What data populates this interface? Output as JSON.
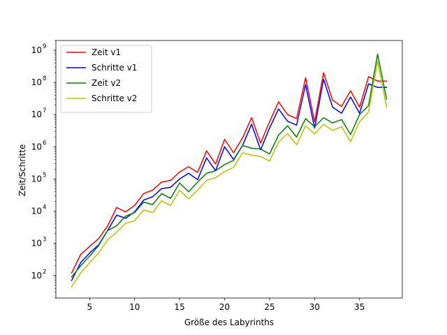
{
  "chart_data": {
    "type": "line",
    "xlabel": "Größe des Labyrinths",
    "ylabel": "Zeit/Schritte",
    "xlim": [
      1.25,
      39.75
    ],
    "ylim": [
      20,
      2000000000
    ],
    "yscale": "log",
    "grid": false,
    "legend_position": "top-left",
    "x_ticks": [
      5,
      10,
      15,
      20,
      25,
      30,
      35
    ],
    "x_tick_labels": [
      "5",
      "10",
      "15",
      "20",
      "25",
      "30",
      "35"
    ],
    "y_ticks": [
      100,
      1000,
      10000,
      100000,
      1000000,
      10000000,
      100000000,
      1000000000
    ],
    "y_tick_exponents": [
      "2",
      "3",
      "4",
      "5",
      "6",
      "7",
      "8",
      "9"
    ],
    "y_tick_base": "10",
    "x": [
      3,
      4,
      5,
      6,
      7,
      8,
      9,
      10,
      11,
      12,
      13,
      14,
      15,
      16,
      17,
      18,
      19,
      20,
      21,
      22,
      23,
      24,
      25,
      26,
      27,
      28,
      29,
      30,
      31,
      32,
      33,
      34,
      35,
      36,
      37,
      38
    ],
    "series": [
      {
        "name": "Zeit v1",
        "color": "#ff0000",
        "values": [
          120,
          450,
          800,
          1400,
          3500,
          13000,
          9500,
          15000,
          35000,
          45000,
          80000,
          90000,
          165000,
          240000,
          160000,
          750000,
          290000,
          1700000,
          650000,
          1900000,
          8000000,
          1300000,
          6000000,
          25000000,
          10000000,
          7500000,
          140000000,
          6000000,
          200000000,
          28000000,
          18000000,
          55000000,
          17000000,
          150000000,
          110000000,
          110000000
        ]
      },
      {
        "name": "Schritte v1",
        "color": "#0000ff",
        "values": [
          70,
          250,
          500,
          900,
          2500,
          7500,
          6000,
          9500,
          22000,
          28000,
          50000,
          55000,
          100000,
          150000,
          95000,
          450000,
          180000,
          1000000,
          400000,
          1100000,
          5000000,
          800000,
          3800000,
          15000000,
          6200000,
          4700000,
          85000000,
          3800000,
          125000000,
          17000000,
          11000000,
          35000000,
          11000000,
          90000000,
          70000000,
          70000000
        ]
      },
      {
        "name": "Zeit v2",
        "color": "#008000",
        "values": [
          90,
          200,
          400,
          850,
          2500,
          3500,
          7000,
          9000,
          19000,
          16000,
          35000,
          25000,
          75000,
          40000,
          80000,
          150000,
          180000,
          280000,
          380000,
          1100000,
          900000,
          850000,
          600000,
          2300000,
          4500000,
          2000000,
          7500000,
          4200000,
          8000000,
          5500000,
          7000000,
          2400000,
          10000000,
          19000000,
          750000000,
          30000000
        ]
      },
      {
        "name": "Schritte v2",
        "color": "#bfbf00",
        "values": [
          45,
          120,
          250,
          500,
          1300,
          2200,
          4200,
          5000,
          11000,
          9000,
          21000,
          15000,
          45000,
          24000,
          45000,
          90000,
          110000,
          170000,
          230000,
          650000,
          550000,
          500000,
          360000,
          1400000,
          2600000,
          1150000,
          4500000,
          2500000,
          5000000,
          3200000,
          4200000,
          1450000,
          6000000,
          12000000,
          450000000,
          17000000
        ]
      }
    ]
  }
}
